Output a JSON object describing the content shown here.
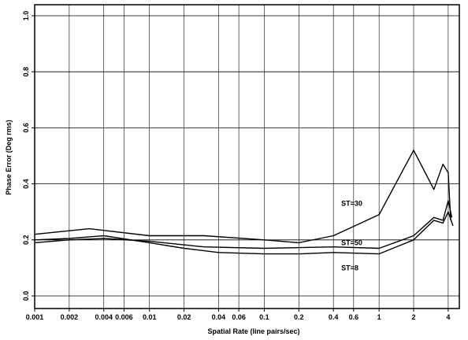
{
  "chart_data": {
    "type": "line",
    "xlabel": "Spatial Rate (line pairs/sec)",
    "ylabel": "Phase Error (Deg rms)",
    "xscale": "log",
    "xlim": [
      0.001,
      5
    ],
    "ylim": [
      0.0,
      1.0
    ],
    "x_ticks": [
      {
        "value": 0.001,
        "label": "0.001"
      },
      {
        "value": 0.002,
        "label": "0.002"
      },
      {
        "value": 0.004,
        "label": "0.004"
      },
      {
        "value": 0.006,
        "label": "0.006"
      },
      {
        "value": 0.01,
        "label": "0.01"
      },
      {
        "value": 0.02,
        "label": "0.02"
      },
      {
        "value": 0.04,
        "label": "0.04"
      },
      {
        "value": 0.06,
        "label": "0.06"
      },
      {
        "value": 0.1,
        "label": "0.1"
      },
      {
        "value": 0.2,
        "label": "0.2"
      },
      {
        "value": 0.4,
        "label": "0.4"
      },
      {
        "value": 0.6,
        "label": "0.6"
      },
      {
        "value": 1,
        "label": "1"
      },
      {
        "value": 2,
        "label": "2"
      },
      {
        "value": 4,
        "label": "4"
      }
    ],
    "y_ticks": [
      {
        "value": 0.0,
        "label": "0.0"
      },
      {
        "value": 0.2,
        "label": "0.2"
      },
      {
        "value": 0.4,
        "label": "0.4"
      },
      {
        "value": 0.6,
        "label": "0.6"
      },
      {
        "value": 0.8,
        "label": "0.8"
      },
      {
        "value": 1.0,
        "label": "1.0"
      }
    ],
    "grid": true,
    "series": [
      {
        "name": "ST=30",
        "x": [
          0.001,
          0.003,
          0.01,
          0.03,
          0.1,
          0.2,
          0.4,
          1,
          2,
          3,
          3.6,
          4,
          4.2
        ],
        "y": [
          0.22,
          0.24,
          0.215,
          0.215,
          0.2,
          0.19,
          0.215,
          0.29,
          0.52,
          0.38,
          0.47,
          0.44,
          0.27
        ]
      },
      {
        "name": "ST=50",
        "x": [
          0.001,
          0.002,
          0.004,
          0.01,
          0.03,
          0.1,
          0.4,
          1,
          2,
          3,
          3.6,
          4,
          4.3
        ],
        "y": [
          0.19,
          0.2,
          0.205,
          0.195,
          0.175,
          0.17,
          0.175,
          0.17,
          0.215,
          0.28,
          0.27,
          0.34,
          0.28
        ]
      },
      {
        "name": "ST=8",
        "x": [
          0.001,
          0.002,
          0.004,
          0.01,
          0.02,
          0.04,
          0.1,
          0.2,
          0.4,
          1,
          2,
          3,
          3.6,
          4,
          4.4
        ],
        "y": [
          0.2,
          0.205,
          0.215,
          0.19,
          0.17,
          0.155,
          0.15,
          0.15,
          0.155,
          0.15,
          0.2,
          0.27,
          0.26,
          0.3,
          0.25
        ]
      }
    ],
    "annotations": [
      {
        "text": "ST=30",
        "x": 1.0,
        "y": 0.33
      },
      {
        "text": "ST=50",
        "x": 1.0,
        "y": 0.19
      },
      {
        "text": "ST=8",
        "x": 1.0,
        "y": 0.1
      }
    ]
  }
}
